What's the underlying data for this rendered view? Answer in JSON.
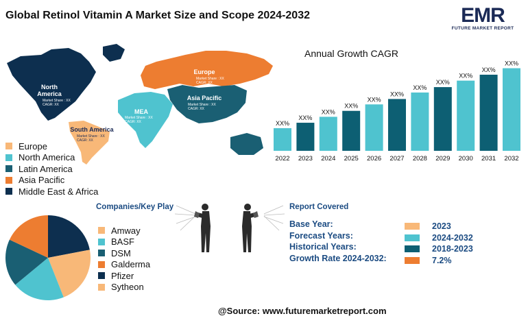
{
  "header": {
    "title": "Global Retinol Vitamin A Market Size and Scope 2024-2032"
  },
  "logo": {
    "main": "EMR",
    "sub": "FUTURE MARKET REPORT"
  },
  "map": {
    "regions": [
      {
        "name_lines": [
          "North",
          "America"
        ],
        "meta": [
          "Market Share : XX",
          "CAGR: XX"
        ],
        "color": "#0d2f4f"
      },
      {
        "name_lines": [
          "Europe"
        ],
        "meta": [
          "Market Share : XX",
          "CAGR: XX"
        ],
        "color": "#ed7d31"
      },
      {
        "name_lines": [
          "Asia Pacific"
        ],
        "meta": [
          "Market Share : XX",
          "CAGR: XX"
        ],
        "color": "#1a5f73"
      },
      {
        "name_lines": [
          "MEA"
        ],
        "meta": [
          "Market Share : XX",
          "CAGR: XX"
        ],
        "color": "#4fc3cf"
      },
      {
        "name_lines": [
          "South America"
        ],
        "meta": [
          "Market Share : XX",
          "CAGR: XX"
        ],
        "color": "#f8b878"
      }
    ]
  },
  "region_legend": [
    {
      "label": "Europe",
      "color": "#f8b878"
    },
    {
      "label": "North America",
      "color": "#4fc3cf"
    },
    {
      "label": "Latin America",
      "color": "#1a5f73"
    },
    {
      "label": "Asia Pacific",
      "color": "#ed7d31"
    },
    {
      "label": "Middle East & Africa",
      "color": "#0d2f4f"
    }
  ],
  "chart_data": {
    "type": "bar",
    "title": "Annual Growth CAGR",
    "categories": [
      "2022",
      "2023",
      "2024",
      "2025",
      "2026",
      "2027",
      "2028",
      "2029",
      "2030",
      "2031",
      "2032"
    ],
    "values": [
      4.2,
      5.2,
      6.3,
      7.4,
      8.6,
      9.6,
      10.8,
      11.8,
      13.0,
      14.1,
      15.3
    ],
    "value_labels": [
      "XX%",
      "XX%",
      "XX%",
      "XX%",
      "XX%",
      "XX%",
      "XX%",
      "XX%",
      "XX%",
      "XX%",
      "XX%"
    ],
    "bar_colors": [
      "#4fc3cf",
      "#0d5f73",
      "#4fc3cf",
      "#0d5f73",
      "#4fc3cf",
      "#0d5f73",
      "#4fc3cf",
      "#0d5f73",
      "#4fc3cf",
      "#0d5f73",
      "#4fc3cf"
    ],
    "ylim": [
      0,
      16
    ],
    "grid": false,
    "xlabel": "",
    "ylabel": ""
  },
  "companies": {
    "title": "Companies/Key Play",
    "items": [
      {
        "label": "Amway",
        "color": "#f8b878"
      },
      {
        "label": "BASF",
        "color": "#4fc3cf"
      },
      {
        "label": "DSM",
        "color": "#1a5f73"
      },
      {
        "label": "Galderma",
        "color": "#ed7d31"
      },
      {
        "label": "Pfizer",
        "color": "#0d2f4f"
      },
      {
        "label": "Sytheon",
        "color": "#f8b878"
      }
    ],
    "pie_shares": [
      {
        "value": 22,
        "color": "#0d2f4f"
      },
      {
        "value": 22,
        "color": "#f8b878"
      },
      {
        "value": 20,
        "color": "#4fc3cf"
      },
      {
        "value": 18,
        "color": "#1a5f73"
      },
      {
        "value": 18,
        "color": "#ed7d31"
      }
    ]
  },
  "report": {
    "title": "Report Covered",
    "rows": [
      {
        "label": "Base Year:",
        "value": "2023",
        "color": "#f8b878"
      },
      {
        "label": "Forecast Years:",
        "value": "2024-2032",
        "color": "#4fc3cf"
      },
      {
        "label": "Historical Years:",
        "value": "2018-2023",
        "color": "#0d5f73"
      },
      {
        "label": "Growth Rate 2024-2032:",
        "value": "7.2%",
        "color": "#ed7d31"
      }
    ]
  },
  "footer": {
    "source": "@Source: www.futuremarketreport.com"
  }
}
